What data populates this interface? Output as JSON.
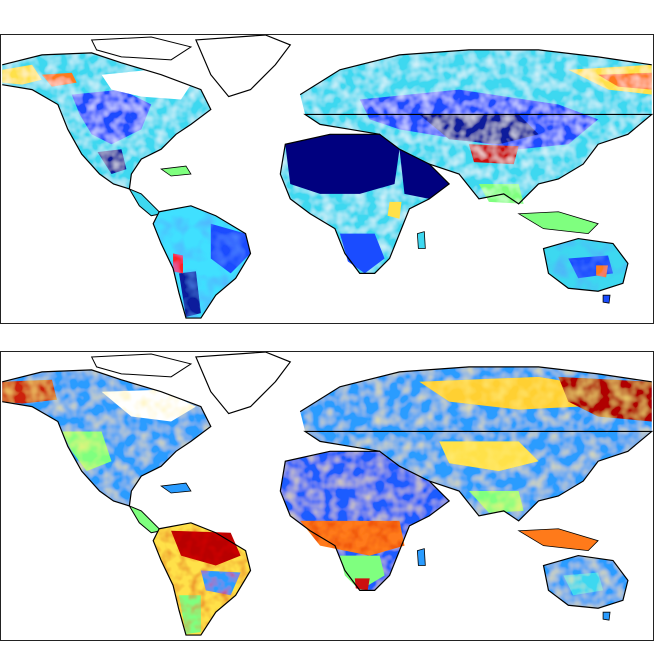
{
  "figure": {
    "panels": [
      {
        "id": "top",
        "projection": "plate-carree",
        "colormap": "jet",
        "palette": [
          "#00007f",
          "#0000ff",
          "#007fff",
          "#00ffff",
          "#7fff7f",
          "#ffff00",
          "#ff7f00",
          "#ff0000",
          "#7f0000"
        ],
        "dominant_tones": {
          "sahara_arabia": "#00007f",
          "amazon": "#3fe0ff",
          "siberia": "#ffe640"
        }
      },
      {
        "id": "bottom",
        "projection": "plate-carree",
        "colormap": "jet",
        "palette": [
          "#00007f",
          "#0000ff",
          "#007fff",
          "#00ffff",
          "#7fff7f",
          "#ffff00",
          "#ff7f00",
          "#ff0000",
          "#7f0000"
        ],
        "dominant_tones": {
          "sahara_arabia": "#1a5cff",
          "amazon": "#b80000",
          "siberia": "#b00000"
        }
      }
    ],
    "coastline_color": "#000000",
    "ocean_color": "#ffffff",
    "no_data_color": "#ffffff"
  }
}
